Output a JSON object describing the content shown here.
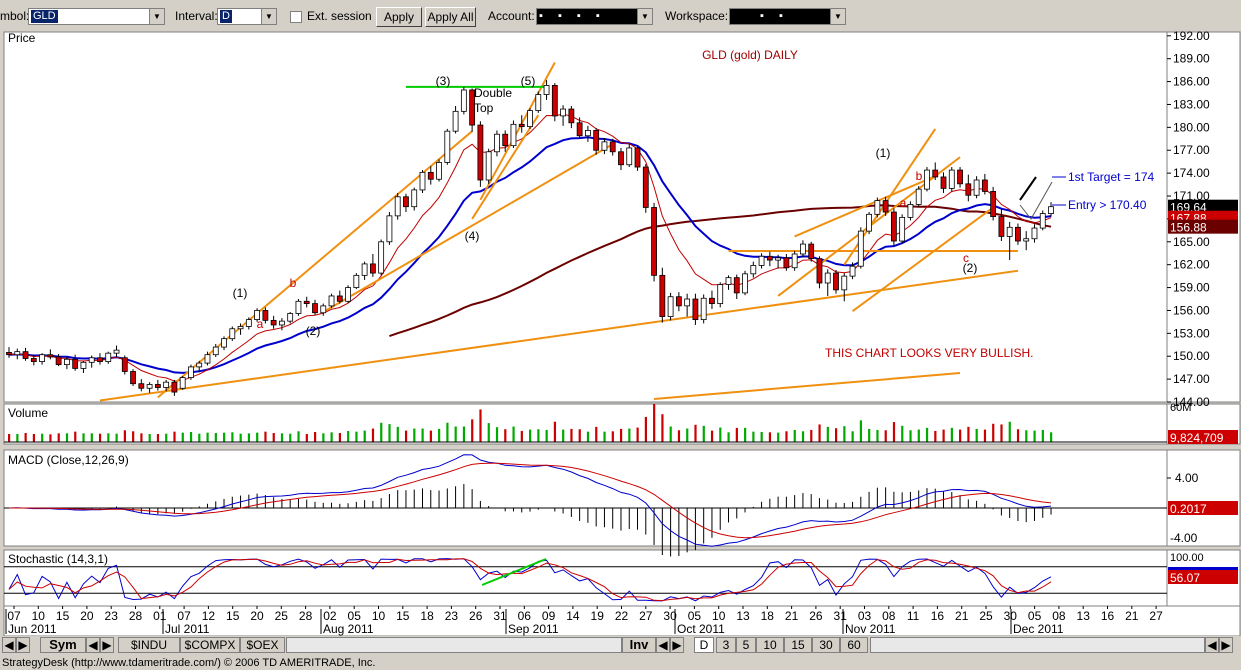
{
  "toolbar": {
    "symbol_label": "mbol:",
    "symbol_value": "GLD",
    "interval_label": "Interval:",
    "interval_value": "D",
    "ext_session_label": "Ext. session",
    "apply_label": "Apply",
    "apply_all_label": "Apply All",
    "account_label": "Account:",
    "account_value": "▪ ▪ ▪ ▪",
    "workspace_label": "Workspace:",
    "workspace_value": "▪ ▪"
  },
  "chart_data": {
    "type": "candlestick",
    "title": "GLD (gold) DAILY",
    "price_pane_label": "Price",
    "price_ticks": [
      "192.00",
      "189.00",
      "186.00",
      "183.00",
      "180.00",
      "177.00",
      "174.00",
      "171.00",
      "168.00",
      "165.00",
      "162.00",
      "159.00",
      "156.00",
      "153.00",
      "150.00",
      "147.00",
      "144.00"
    ],
    "price_range": [
      144,
      192.5
    ],
    "last_price_label": "169.64",
    "ma_short_label": "167.88",
    "ma_long_label": "156.88",
    "annotations": {
      "double_top_1": "Double",
      "double_top_2": "Top",
      "wave_3": "(3)",
      "wave_4": "(4)",
      "wave_5": "(5)",
      "wave_1a": "(1)",
      "wave_2a": "(2)",
      "wave_1b": "(1)",
      "wave_2b": "(2)",
      "letter_a1": "a",
      "letter_b1": "b",
      "letter_a2": "a",
      "letter_b2": "b",
      "letter_c": "c",
      "target": "1st Target = 174",
      "entry": "Entry > 170.40",
      "bullish": "THIS CHART LOOKS VERY BULLISH."
    },
    "candles": [
      {
        "d": "06-03",
        "o": 150.5,
        "h": 151.2,
        "l": 149.8,
        "c": 150.2
      },
      {
        "d": "06-06",
        "o": 150.2,
        "h": 151.0,
        "l": 149.6,
        "c": 150.6
      },
      {
        "d": "06-07",
        "o": 150.6,
        "h": 151.1,
        "l": 149.4,
        "c": 149.7
      },
      {
        "d": "06-08",
        "o": 149.7,
        "h": 150.2,
        "l": 148.8,
        "c": 149.3
      },
      {
        "d": "06-09",
        "o": 149.3,
        "h": 150.4,
        "l": 148.9,
        "c": 150.2
      },
      {
        "d": "06-10",
        "o": 150.2,
        "h": 150.9,
        "l": 149.6,
        "c": 149.9
      },
      {
        "d": "06-13",
        "o": 149.9,
        "h": 150.3,
        "l": 148.7,
        "c": 148.9
      },
      {
        "d": "06-14",
        "o": 148.9,
        "h": 149.9,
        "l": 148.3,
        "c": 149.6
      },
      {
        "d": "06-15",
        "o": 149.6,
        "h": 150.2,
        "l": 148.1,
        "c": 148.4
      },
      {
        "d": "06-16",
        "o": 148.4,
        "h": 149.4,
        "l": 147.8,
        "c": 149.2
      },
      {
        "d": "06-17",
        "o": 149.2,
        "h": 150.1,
        "l": 148.5,
        "c": 149.8
      },
      {
        "d": "06-20",
        "o": 149.8,
        "h": 150.4,
        "l": 148.9,
        "c": 149.3
      },
      {
        "d": "06-21",
        "o": 149.3,
        "h": 150.6,
        "l": 149.0,
        "c": 150.4
      },
      {
        "d": "06-22",
        "o": 150.4,
        "h": 151.4,
        "l": 149.9,
        "c": 150.8
      },
      {
        "d": "06-23",
        "o": 149.8,
        "h": 150.1,
        "l": 147.6,
        "c": 148.0
      },
      {
        "d": "06-24",
        "o": 148.0,
        "h": 148.3,
        "l": 146.1,
        "c": 146.4
      },
      {
        "d": "06-27",
        "o": 146.4,
        "h": 147.0,
        "l": 145.4,
        "c": 145.8
      },
      {
        "d": "06-28",
        "o": 145.8,
        "h": 146.6,
        "l": 145.2,
        "c": 146.3
      },
      {
        "d": "06-29",
        "o": 146.3,
        "h": 146.9,
        "l": 145.5,
        "c": 145.9
      },
      {
        "d": "06-30",
        "o": 145.9,
        "h": 146.9,
        "l": 145.4,
        "c": 146.6
      },
      {
        "d": "07-01",
        "o": 146.6,
        "h": 146.9,
        "l": 144.8,
        "c": 145.3
      },
      {
        "d": "07-05",
        "o": 145.8,
        "h": 147.4,
        "l": 145.6,
        "c": 147.2
      },
      {
        "d": "07-06",
        "o": 147.2,
        "h": 148.9,
        "l": 146.9,
        "c": 148.6
      },
      {
        "d": "07-07",
        "o": 148.6,
        "h": 149.4,
        "l": 147.9,
        "c": 149.1
      },
      {
        "d": "07-08",
        "o": 149.1,
        "h": 150.6,
        "l": 148.8,
        "c": 150.2
      },
      {
        "d": "07-11",
        "o": 150.2,
        "h": 151.6,
        "l": 149.9,
        "c": 151.2
      },
      {
        "d": "07-12",
        "o": 151.2,
        "h": 152.6,
        "l": 150.8,
        "c": 152.3
      },
      {
        "d": "07-13",
        "o": 152.3,
        "h": 153.9,
        "l": 152.0,
        "c": 153.6
      },
      {
        "d": "07-14",
        "o": 153.6,
        "h": 154.3,
        "l": 152.8,
        "c": 153.9
      },
      {
        "d": "07-15",
        "o": 153.9,
        "h": 155.1,
        "l": 153.5,
        "c": 154.8
      },
      {
        "d": "07-18",
        "o": 154.8,
        "h": 156.3,
        "l": 154.5,
        "c": 156.0
      },
      {
        "d": "07-19",
        "o": 156.0,
        "h": 156.4,
        "l": 154.3,
        "c": 154.7
      },
      {
        "d": "07-20",
        "o": 154.7,
        "h": 155.3,
        "l": 153.6,
        "c": 154.1
      },
      {
        "d": "07-21",
        "o": 154.1,
        "h": 155.0,
        "l": 153.4,
        "c": 154.6
      },
      {
        "d": "07-22",
        "o": 154.6,
        "h": 155.8,
        "l": 154.3,
        "c": 155.6
      },
      {
        "d": "07-25",
        "o": 155.6,
        "h": 157.5,
        "l": 155.3,
        "c": 157.2
      },
      {
        "d": "07-26",
        "o": 157.2,
        "h": 157.8,
        "l": 156.4,
        "c": 156.9
      },
      {
        "d": "07-27",
        "o": 156.9,
        "h": 157.4,
        "l": 155.4,
        "c": 155.7
      },
      {
        "d": "07-28",
        "o": 155.7,
        "h": 156.9,
        "l": 155.3,
        "c": 156.6
      },
      {
        "d": "07-29",
        "o": 156.6,
        "h": 158.2,
        "l": 156.3,
        "c": 157.9
      },
      {
        "d": "08-01",
        "o": 157.9,
        "h": 158.6,
        "l": 156.9,
        "c": 157.2
      },
      {
        "d": "08-02",
        "o": 157.2,
        "h": 159.3,
        "l": 157.0,
        "c": 159.0
      },
      {
        "d": "08-03",
        "o": 159.0,
        "h": 160.9,
        "l": 158.8,
        "c": 160.6
      },
      {
        "d": "08-04",
        "o": 160.6,
        "h": 162.4,
        "l": 160.0,
        "c": 162.1
      },
      {
        "d": "08-05",
        "o": 162.1,
        "h": 163.4,
        "l": 160.4,
        "c": 160.9
      },
      {
        "d": "08-08",
        "o": 160.9,
        "h": 165.3,
        "l": 160.6,
        "c": 165.0
      },
      {
        "d": "08-09",
        "o": 165.0,
        "h": 168.9,
        "l": 164.6,
        "c": 168.4
      },
      {
        "d": "08-10",
        "o": 168.4,
        "h": 171.4,
        "l": 167.9,
        "c": 170.9
      },
      {
        "d": "08-11",
        "o": 170.9,
        "h": 171.3,
        "l": 168.9,
        "c": 169.6
      },
      {
        "d": "08-12",
        "o": 169.6,
        "h": 172.1,
        "l": 169.1,
        "c": 171.8
      },
      {
        "d": "08-15",
        "o": 171.8,
        "h": 174.4,
        "l": 171.4,
        "c": 174.1
      },
      {
        "d": "08-16",
        "o": 174.1,
        "h": 174.9,
        "l": 172.5,
        "c": 173.2
      },
      {
        "d": "08-17",
        "o": 173.2,
        "h": 175.8,
        "l": 172.9,
        "c": 175.4
      },
      {
        "d": "08-18",
        "o": 175.4,
        "h": 179.8,
        "l": 175.1,
        "c": 179.5
      },
      {
        "d": "08-19",
        "o": 179.5,
        "h": 182.8,
        "l": 179.2,
        "c": 182.1
      },
      {
        "d": "08-22",
        "o": 182.1,
        "h": 185.3,
        "l": 181.7,
        "c": 184.9
      },
      {
        "d": "08-23",
        "o": 184.9,
        "h": 185.1,
        "l": 179.4,
        "c": 180.3
      },
      {
        "d": "08-24",
        "o": 180.3,
        "h": 180.8,
        "l": 172.2,
        "c": 173.1
      },
      {
        "d": "08-25",
        "o": 173.1,
        "h": 177.2,
        "l": 172.6,
        "c": 176.8
      },
      {
        "d": "08-26",
        "o": 176.8,
        "h": 179.6,
        "l": 176.2,
        "c": 179.1
      },
      {
        "d": "08-29",
        "o": 179.1,
        "h": 179.6,
        "l": 176.8,
        "c": 177.6
      },
      {
        "d": "08-30",
        "o": 177.6,
        "h": 180.9,
        "l": 177.3,
        "c": 180.4
      },
      {
        "d": "08-31",
        "o": 180.4,
        "h": 181.6,
        "l": 179.3,
        "c": 180.1
      },
      {
        "d": "09-01",
        "o": 180.1,
        "h": 182.5,
        "l": 179.8,
        "c": 182.2
      },
      {
        "d": "09-02",
        "o": 182.2,
        "h": 184.7,
        "l": 181.9,
        "c": 184.3
      },
      {
        "d": "09-06",
        "o": 184.3,
        "h": 186.2,
        "l": 183.6,
        "c": 185.5
      },
      {
        "d": "09-07",
        "o": 185.5,
        "h": 185.8,
        "l": 180.8,
        "c": 181.5
      },
      {
        "d": "09-08",
        "o": 181.5,
        "h": 182.9,
        "l": 180.2,
        "c": 182.4
      },
      {
        "d": "09-09",
        "o": 182.4,
        "h": 182.8,
        "l": 179.9,
        "c": 180.6
      },
      {
        "d": "09-12",
        "o": 180.6,
        "h": 181.3,
        "l": 178.5,
        "c": 178.9
      },
      {
        "d": "09-13",
        "o": 178.9,
        "h": 180.2,
        "l": 178.1,
        "c": 179.6
      },
      {
        "d": "09-14",
        "o": 179.6,
        "h": 179.9,
        "l": 176.4,
        "c": 177.0
      },
      {
        "d": "09-15",
        "o": 177.0,
        "h": 178.6,
        "l": 176.5,
        "c": 178.1
      },
      {
        "d": "09-16",
        "o": 178.1,
        "h": 178.5,
        "l": 176.3,
        "c": 176.8
      },
      {
        "d": "09-19",
        "o": 176.8,
        "h": 177.3,
        "l": 174.4,
        "c": 175.1
      },
      {
        "d": "09-20",
        "o": 175.1,
        "h": 177.8,
        "l": 174.8,
        "c": 177.3
      },
      {
        "d": "09-21",
        "o": 177.3,
        "h": 177.6,
        "l": 174.3,
        "c": 174.8
      },
      {
        "d": "09-22",
        "o": 174.8,
        "h": 175.2,
        "l": 168.8,
        "c": 169.5
      },
      {
        "d": "09-23",
        "o": 169.5,
        "h": 170.1,
        "l": 159.8,
        "c": 160.6
      },
      {
        "d": "09-26",
        "o": 160.6,
        "h": 161.6,
        "l": 154.4,
        "c": 155.2
      },
      {
        "d": "09-27",
        "o": 155.2,
        "h": 158.3,
        "l": 154.7,
        "c": 157.8
      },
      {
        "d": "09-28",
        "o": 157.8,
        "h": 158.4,
        "l": 155.9,
        "c": 156.6
      },
      {
        "d": "09-29",
        "o": 156.6,
        "h": 158.2,
        "l": 155.2,
        "c": 157.5
      },
      {
        "d": "09-30",
        "o": 157.5,
        "h": 158.2,
        "l": 154.1,
        "c": 154.8
      },
      {
        "d": "10-03",
        "o": 154.8,
        "h": 158.1,
        "l": 154.3,
        "c": 157.6
      },
      {
        "d": "10-04",
        "o": 157.6,
        "h": 158.6,
        "l": 156.2,
        "c": 156.9
      },
      {
        "d": "10-05",
        "o": 156.9,
        "h": 159.7,
        "l": 156.4,
        "c": 159.4
      },
      {
        "d": "10-06",
        "o": 159.4,
        "h": 160.6,
        "l": 158.7,
        "c": 160.3
      },
      {
        "d": "10-07",
        "o": 160.3,
        "h": 160.7,
        "l": 157.5,
        "c": 158.3
      },
      {
        "d": "10-10",
        "o": 158.3,
        "h": 161.2,
        "l": 158.0,
        "c": 160.8
      },
      {
        "d": "10-11",
        "o": 160.8,
        "h": 162.4,
        "l": 160.3,
        "c": 161.9
      },
      {
        "d": "10-12",
        "o": 161.9,
        "h": 163.5,
        "l": 161.5,
        "c": 163.1
      },
      {
        "d": "10-13",
        "o": 163.1,
        "h": 163.7,
        "l": 161.8,
        "c": 162.6
      },
      {
        "d": "10-14",
        "o": 162.6,
        "h": 163.3,
        "l": 161.5,
        "c": 162.9
      },
      {
        "d": "10-17",
        "o": 162.9,
        "h": 163.4,
        "l": 161.2,
        "c": 161.6
      },
      {
        "d": "10-18",
        "o": 161.6,
        "h": 163.8,
        "l": 161.2,
        "c": 163.4
      },
      {
        "d": "10-19",
        "o": 163.4,
        "h": 165.2,
        "l": 163.0,
        "c": 164.7
      },
      {
        "d": "10-20",
        "o": 164.7,
        "h": 165.0,
        "l": 162.4,
        "c": 162.8
      },
      {
        "d": "10-21",
        "o": 162.8,
        "h": 163.1,
        "l": 158.9,
        "c": 159.6
      },
      {
        "d": "10-24",
        "o": 159.6,
        "h": 161.4,
        "l": 157.9,
        "c": 160.9
      },
      {
        "d": "10-25",
        "o": 160.9,
        "h": 161.3,
        "l": 158.2,
        "c": 158.7
      },
      {
        "d": "10-26",
        "o": 158.7,
        "h": 160.9,
        "l": 157.2,
        "c": 160.5
      },
      {
        "d": "10-27",
        "o": 160.5,
        "h": 162.3,
        "l": 160.1,
        "c": 161.8
      },
      {
        "d": "10-28",
        "o": 161.8,
        "h": 166.9,
        "l": 161.5,
        "c": 166.4
      },
      {
        "d": "10-31",
        "o": 166.4,
        "h": 168.9,
        "l": 166.0,
        "c": 168.6
      },
      {
        "d": "11-01",
        "o": 168.6,
        "h": 170.8,
        "l": 168.2,
        "c": 170.4
      },
      {
        "d": "11-02",
        "o": 170.4,
        "h": 170.9,
        "l": 168.4,
        "c": 168.9
      },
      {
        "d": "11-03",
        "o": 168.9,
        "h": 169.4,
        "l": 164.5,
        "c": 165.1
      },
      {
        "d": "11-04",
        "o": 165.1,
        "h": 168.6,
        "l": 164.8,
        "c": 168.2
      },
      {
        "d": "11-07",
        "o": 168.2,
        "h": 170.3,
        "l": 167.8,
        "c": 169.9
      },
      {
        "d": "11-08",
        "o": 169.9,
        "h": 172.3,
        "l": 169.6,
        "c": 171.9
      },
      {
        "d": "11-09",
        "o": 171.9,
        "h": 174.8,
        "l": 171.6,
        "c": 174.4
      },
      {
        "d": "11-10",
        "o": 174.4,
        "h": 175.4,
        "l": 173.1,
        "c": 173.5
      },
      {
        "d": "11-11",
        "o": 173.5,
        "h": 174.1,
        "l": 171.4,
        "c": 172.0
      },
      {
        "d": "11-14",
        "o": 172.0,
        "h": 174.8,
        "l": 171.6,
        "c": 174.4
      },
      {
        "d": "11-15",
        "o": 174.4,
        "h": 174.8,
        "l": 172.1,
        "c": 172.6
      },
      {
        "d": "11-16",
        "o": 172.6,
        "h": 173.8,
        "l": 170.3,
        "c": 171.1
      },
      {
        "d": "11-17",
        "o": 171.1,
        "h": 173.6,
        "l": 170.7,
        "c": 173.1
      },
      {
        "d": "11-18",
        "o": 173.1,
        "h": 173.9,
        "l": 171.2,
        "c": 171.6
      },
      {
        "d": "11-21",
        "o": 171.6,
        "h": 172.2,
        "l": 167.8,
        "c": 168.3
      },
      {
        "d": "11-22",
        "o": 168.3,
        "h": 169.3,
        "l": 165.1,
        "c": 165.7
      },
      {
        "d": "11-23",
        "o": 165.7,
        "h": 167.6,
        "l": 162.6,
        "c": 166.9
      },
      {
        "d": "11-25",
        "o": 166.9,
        "h": 167.4,
        "l": 164.6,
        "c": 165.1
      },
      {
        "d": "11-28",
        "o": 165.1,
        "h": 166.4,
        "l": 163.9,
        "c": 165.4
      },
      {
        "d": "11-29",
        "o": 165.4,
        "h": 167.3,
        "l": 164.9,
        "c": 166.8
      },
      {
        "d": "11-30",
        "o": 166.8,
        "h": 169.1,
        "l": 166.5,
        "c": 168.7
      },
      {
        "d": "12-01",
        "o": 168.7,
        "h": 170.2,
        "l": 168.3,
        "c": 169.6
      }
    ],
    "volume_pane_label": "Volume",
    "volume_tick": "60M",
    "volume_last_label": "9,824,709",
    "macd_pane_label": "MACD (Close,12,26,9)",
    "macd_ticks": [
      "4.00",
      "-4.00"
    ],
    "macd_last_label": "0.2017",
    "stoch_pane_label": "Stochastic (14,3,1)",
    "stoch_tick": "100.00",
    "stoch_last_label": "56.07",
    "x_ticks": [
      "07",
      "10",
      "15",
      "20",
      "23",
      "28",
      "01",
      "07",
      "12",
      "15",
      "20",
      "25",
      "28",
      "02",
      "05",
      "10",
      "15",
      "18",
      "23",
      "26",
      "31",
      "06",
      "09",
      "14",
      "19",
      "22",
      "27",
      "30",
      "05",
      "10",
      "13",
      "18",
      "21",
      "26",
      "31",
      "03",
      "08",
      "11",
      "16",
      "21",
      "25",
      "30",
      "05",
      "08",
      "13",
      "16",
      "21",
      "27"
    ],
    "month_labels": [
      "Jun 2011",
      "Jul 2011",
      "Aug 2011",
      "Sep 2011",
      "Oct 2011",
      "Nov 2011",
      "Dec 2011"
    ],
    "colors": {
      "background": "#ffffff",
      "ma_short": "#c00000",
      "ma_blue": "#0000cc",
      "ma_long": "#6b0000",
      "trend": "#f09010",
      "neutral_line": "#00cc00",
      "bull_candle": "#ffffff",
      "bear_candle": "#cc0000"
    }
  },
  "tabs": {
    "sym": "Sym",
    "indu": "$INDU",
    "compx": "$COMPX",
    "oex": "$OEX",
    "inv": "Inv",
    "d": "D",
    "t3": "3",
    "t5": "5",
    "t10": "10",
    "t15": "15",
    "t30": "30",
    "t60": "60"
  },
  "status_text": "StrategyDesk (http://www.tdameritrade.com/) © 2006 TD AMERITRADE, Inc."
}
